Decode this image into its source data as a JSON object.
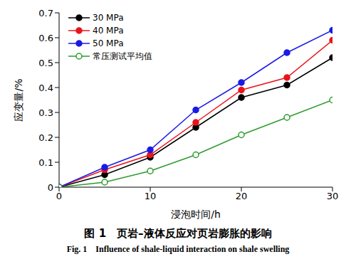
{
  "chart_data": {
    "type": "line",
    "title": "图 1　页岩–液体反应对页岩膨胀的影响",
    "subtitle": "Fig. 1　Influence of shale-liquid interaction on shale swelling",
    "x_label": "浸泡时间/h",
    "y_label": "应变量/%",
    "x": [
      0,
      5,
      10,
      15,
      20,
      25,
      30
    ],
    "series": [
      {
        "name": "30 MPa",
        "color": "#000000",
        "marker": "filled_circle",
        "values": [
          0,
          0.05,
          0.12,
          0.24,
          0.36,
          0.41,
          0.52
        ]
      },
      {
        "name": "40 MPa",
        "color": "#e8141a",
        "marker": "filled_circle",
        "values": [
          0,
          0.07,
          0.13,
          0.26,
          0.39,
          0.44,
          0.59
        ]
      },
      {
        "name": "50 MPa",
        "color": "#1a1ae6",
        "marker": "filled_circle",
        "values": [
          0,
          0.08,
          0.15,
          0.31,
          0.42,
          0.54,
          0.63
        ]
      },
      {
        "name": "常压测试平均值",
        "color": "#2e9b2e",
        "marker": "open_circle",
        "values": [
          0,
          0.02,
          0.065,
          0.13,
          0.21,
          0.28,
          0.35
        ]
      }
    ],
    "xlim": [
      0,
      30
    ],
    "xticks": [
      0,
      10,
      20,
      30
    ],
    "ylim": [
      0,
      0.7
    ],
    "yticks": [
      0,
      0.1,
      0.2,
      0.3,
      0.4,
      0.5,
      0.6,
      0.7
    ],
    "legend": "upper-left",
    "grid": false
  }
}
